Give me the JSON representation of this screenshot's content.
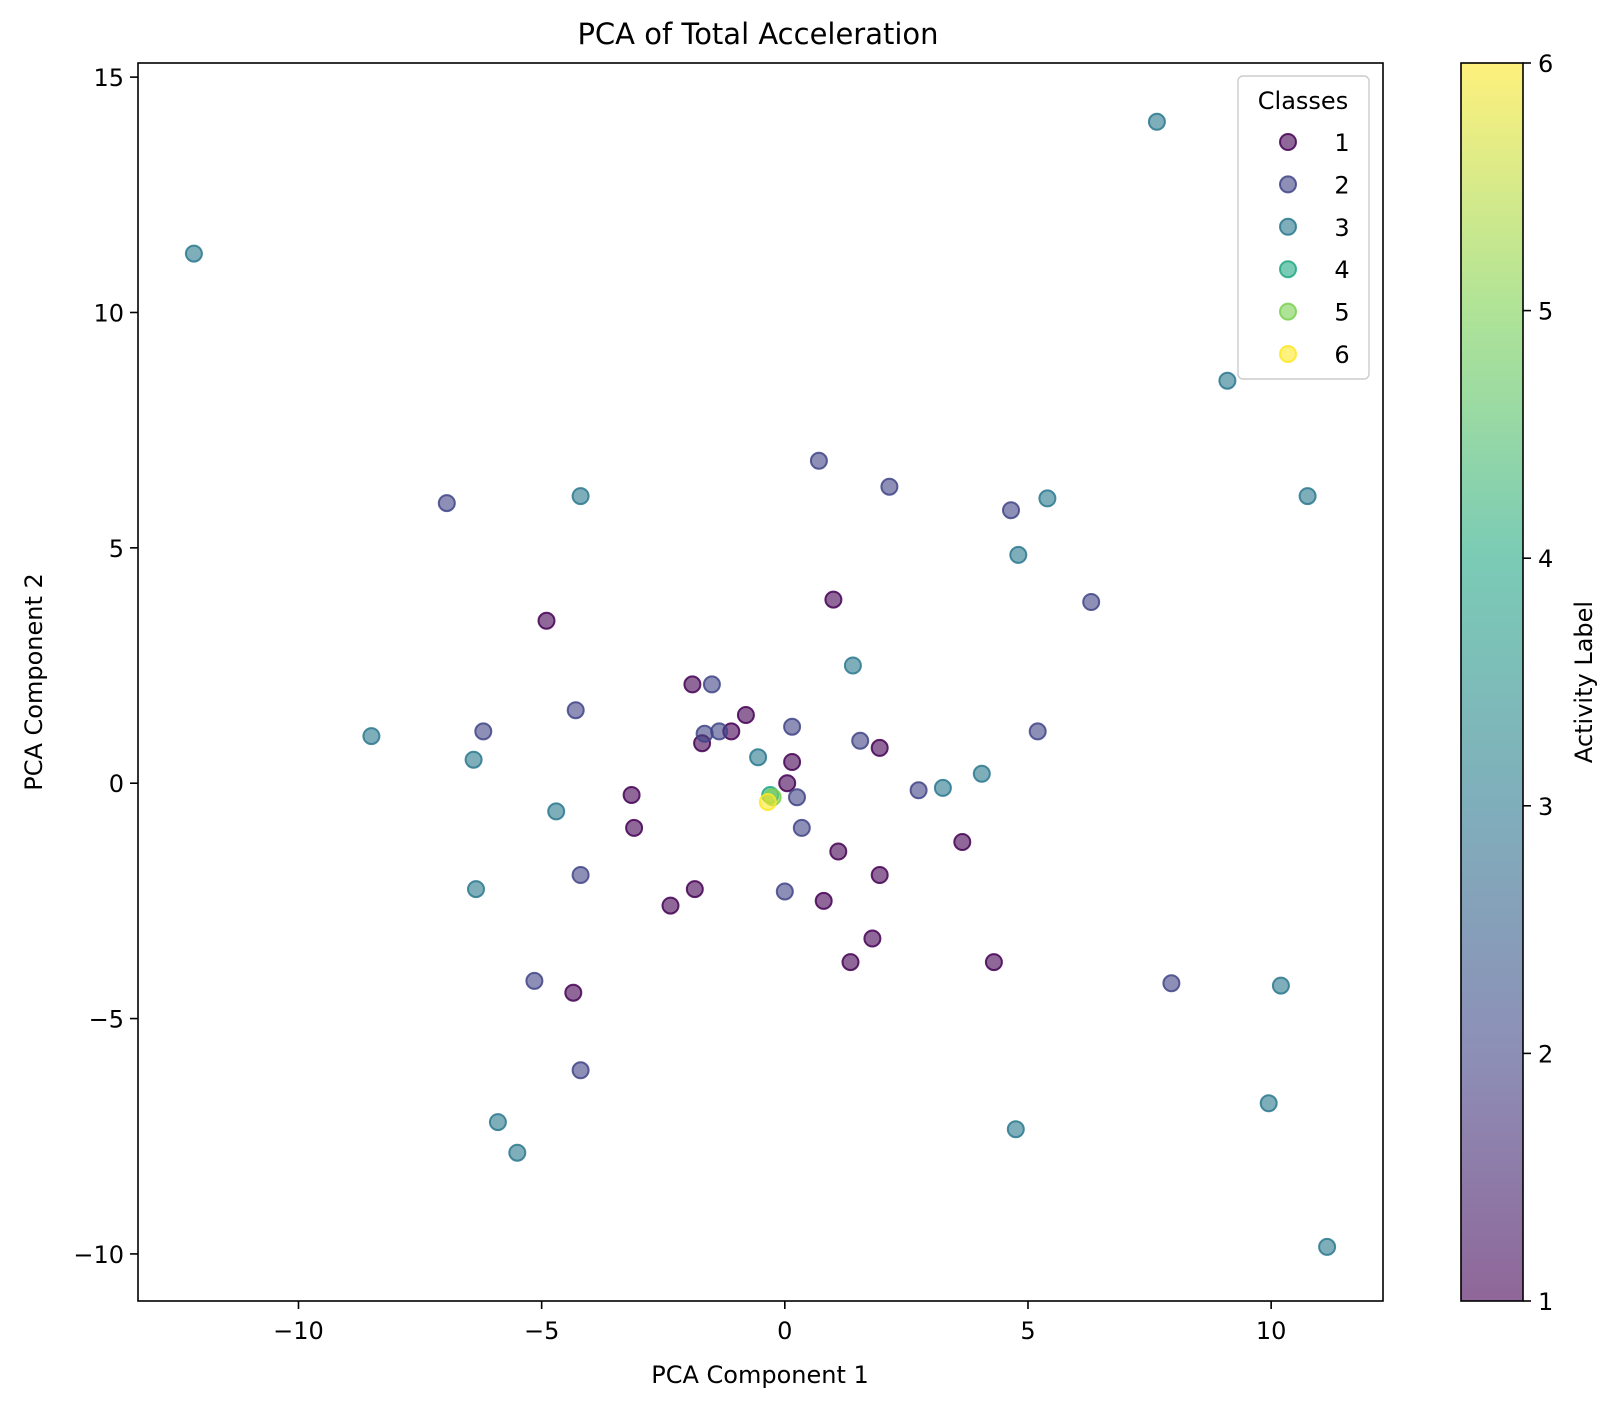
{
  "chart_data": {
    "type": "scatter",
    "title": "PCA of Total Acceleration",
    "xlabel": "PCA Component 1",
    "ylabel": "PCA Component 2",
    "xlim": [
      -13.3,
      12.3
    ],
    "ylim": [
      -11.0,
      15.3
    ],
    "xticks": [
      -10,
      -5,
      0,
      5,
      10
    ],
    "yticks": [
      -10,
      -5,
      0,
      5,
      10,
      15
    ],
    "xtick_labels": [
      "−10",
      "−5",
      "0",
      "5",
      "10"
    ],
    "ytick_labels": [
      "−10",
      "−5",
      "0",
      "5",
      "10",
      "15"
    ],
    "grid": false,
    "legend": {
      "title": "Classes",
      "placement": "top-right",
      "entries": [
        {
          "label": "1",
          "color": "#440154"
        },
        {
          "label": "2",
          "color": "#414487"
        },
        {
          "label": "3",
          "color": "#2a788e"
        },
        {
          "label": "4",
          "color": "#22a884"
        },
        {
          "label": "5",
          "color": "#7ad151"
        },
        {
          "label": "6",
          "color": "#fde725"
        }
      ]
    },
    "colorbar": {
      "label": "Activity Label",
      "range": [
        1,
        6
      ],
      "ticks": [
        1,
        2,
        3,
        4,
        5,
        6
      ],
      "tick_labels": [
        "1",
        "2",
        "3",
        "4",
        "5",
        "6"
      ]
    },
    "series": [
      {
        "name": "1",
        "color": "#440154",
        "points": [
          [
            -4.9,
            3.45
          ],
          [
            -1.9,
            2.1
          ],
          [
            -0.8,
            1.45
          ],
          [
            -1.1,
            1.1
          ],
          [
            -1.7,
            0.85
          ],
          [
            1.0,
            3.9
          ],
          [
            1.95,
            0.75
          ],
          [
            0.15,
            0.45
          ],
          [
            0.05,
            0.0
          ],
          [
            -3.15,
            -0.25
          ],
          [
            -3.1,
            -0.95
          ],
          [
            1.1,
            -1.45
          ],
          [
            1.95,
            -1.95
          ],
          [
            3.65,
            -1.25
          ],
          [
            -1.85,
            -2.25
          ],
          [
            -2.35,
            -2.6
          ],
          [
            0.8,
            -2.5
          ],
          [
            1.8,
            -3.3
          ],
          [
            1.35,
            -3.8
          ],
          [
            4.3,
            -3.8
          ],
          [
            -4.35,
            -4.45
          ]
        ]
      },
      {
        "name": "2",
        "color": "#414487",
        "points": [
          [
            -6.95,
            5.95
          ],
          [
            0.7,
            6.85
          ],
          [
            2.15,
            6.3
          ],
          [
            4.65,
            5.8
          ],
          [
            6.3,
            3.85
          ],
          [
            -4.3,
            1.55
          ],
          [
            -1.5,
            2.1
          ],
          [
            -6.2,
            1.1
          ],
          [
            -1.65,
            1.05
          ],
          [
            -1.35,
            1.1
          ],
          [
            0.15,
            1.2
          ],
          [
            1.55,
            0.9
          ],
          [
            5.2,
            1.1
          ],
          [
            2.75,
            -0.15
          ],
          [
            0.25,
            -0.3
          ],
          [
            0.35,
            -0.95
          ],
          [
            -4.2,
            -1.95
          ],
          [
            0.0,
            -2.3
          ],
          [
            -5.15,
            -4.2
          ],
          [
            -4.2,
            -6.1
          ],
          [
            7.95,
            -4.25
          ]
        ]
      },
      {
        "name": "3",
        "color": "#2a788e",
        "points": [
          [
            -12.15,
            11.25
          ],
          [
            7.65,
            14.05
          ],
          [
            9.1,
            8.55
          ],
          [
            10.75,
            6.1
          ],
          [
            -4.2,
            6.1
          ],
          [
            5.4,
            6.05
          ],
          [
            4.8,
            4.85
          ],
          [
            1.4,
            2.5
          ],
          [
            -8.5,
            1.0
          ],
          [
            -6.4,
            0.5
          ],
          [
            -0.55,
            0.55
          ],
          [
            4.05,
            0.2
          ],
          [
            3.25,
            -0.1
          ],
          [
            -4.7,
            -0.6
          ],
          [
            -6.35,
            -2.25
          ],
          [
            10.2,
            -4.3
          ],
          [
            -5.9,
            -7.2
          ],
          [
            -5.5,
            -7.85
          ],
          [
            4.75,
            -7.35
          ],
          [
            9.95,
            -6.8
          ],
          [
            11.15,
            -9.85
          ]
        ]
      },
      {
        "name": "4",
        "color": "#22a884",
        "points": [
          [
            -0.3,
            -0.25
          ]
        ]
      },
      {
        "name": "5",
        "color": "#7ad151",
        "points": [
          [
            -0.25,
            -0.3
          ]
        ]
      },
      {
        "name": "6",
        "color": "#fde725",
        "points": [
          [
            -0.35,
            -0.4
          ]
        ]
      }
    ]
  }
}
